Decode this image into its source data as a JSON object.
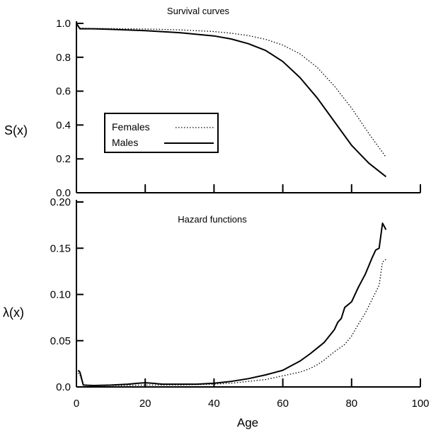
{
  "chart_data": [
    {
      "type": "line",
      "title": "Survival curves",
      "xlabel": "",
      "ylabel": "S(x)",
      "xlim": [
        0,
        100
      ],
      "ylim": [
        0,
        1.0
      ],
      "yticks": [
        "0.0",
        "0.2",
        "0.4",
        "0.6",
        "0.8",
        "1.0"
      ],
      "xticks_shown": [
        0,
        20,
        40,
        60,
        80,
        100
      ],
      "legend": {
        "placement": "center-left",
        "entries": [
          "Females",
          "Males"
        ]
      },
      "grid": false,
      "series": [
        {
          "name": "Females",
          "style": "dotted",
          "x": [
            0,
            1,
            5,
            10,
            20,
            30,
            40,
            45,
            50,
            55,
            60,
            65,
            70,
            75,
            80,
            85,
            90
          ],
          "y": [
            1.0,
            0.972,
            0.97,
            0.969,
            0.967,
            0.962,
            0.952,
            0.942,
            0.928,
            0.906,
            0.872,
            0.82,
            0.74,
            0.63,
            0.5,
            0.35,
            0.21
          ]
        },
        {
          "name": "Males",
          "style": "solid",
          "x": [
            0,
            1,
            5,
            10,
            20,
            30,
            40,
            45,
            50,
            55,
            60,
            65,
            70,
            75,
            80,
            85,
            90
          ],
          "y": [
            1.0,
            0.968,
            0.968,
            0.965,
            0.957,
            0.945,
            0.926,
            0.908,
            0.88,
            0.84,
            0.775,
            0.68,
            0.56,
            0.42,
            0.28,
            0.175,
            0.095
          ]
        }
      ]
    },
    {
      "type": "line",
      "title": "Hazard functions",
      "xlabel": "Age",
      "ylabel": "λ(x)",
      "xlim": [
        0,
        100
      ],
      "ylim": [
        0,
        0.2
      ],
      "yticks": [
        "0.0",
        "0.05",
        "0.10",
        "0.15",
        "0.20"
      ],
      "xticks": [
        "0",
        "20",
        "40",
        "60",
        "80",
        "100"
      ],
      "grid": false,
      "series": [
        {
          "name": "Males",
          "style": "solid",
          "x": [
            0.5,
            1,
            2,
            5,
            10,
            15,
            18,
            20,
            22,
            25,
            30,
            35,
            40,
            45,
            50,
            55,
            60,
            62,
            65,
            68,
            70,
            72,
            75,
            76,
            77,
            78,
            80,
            82,
            84,
            86,
            87,
            88,
            89,
            90
          ],
          "y": [
            0.018,
            0.016,
            0.002,
            0.0015,
            0.002,
            0.003,
            0.004,
            0.0045,
            0.004,
            0.003,
            0.003,
            0.003,
            0.004,
            0.006,
            0.009,
            0.013,
            0.018,
            0.022,
            0.028,
            0.036,
            0.042,
            0.048,
            0.062,
            0.07,
            0.074,
            0.086,
            0.092,
            0.108,
            0.122,
            0.14,
            0.148,
            0.15,
            0.177,
            0.17
          ]
        },
        {
          "name": "Females",
          "style": "dotted",
          "x": [
            0.5,
            1,
            2,
            5,
            10,
            20,
            30,
            40,
            45,
            50,
            55,
            60,
            65,
            68,
            70,
            72,
            75,
            78,
            80,
            82,
            84,
            86,
            88,
            89,
            90
          ],
          "y": [
            0.015,
            0.013,
            0.002,
            0.0012,
            0.0015,
            0.002,
            0.002,
            0.003,
            0.004,
            0.006,
            0.008,
            0.012,
            0.016,
            0.02,
            0.024,
            0.029,
            0.038,
            0.046,
            0.055,
            0.068,
            0.08,
            0.095,
            0.11,
            0.135,
            0.138
          ]
        }
      ]
    }
  ]
}
